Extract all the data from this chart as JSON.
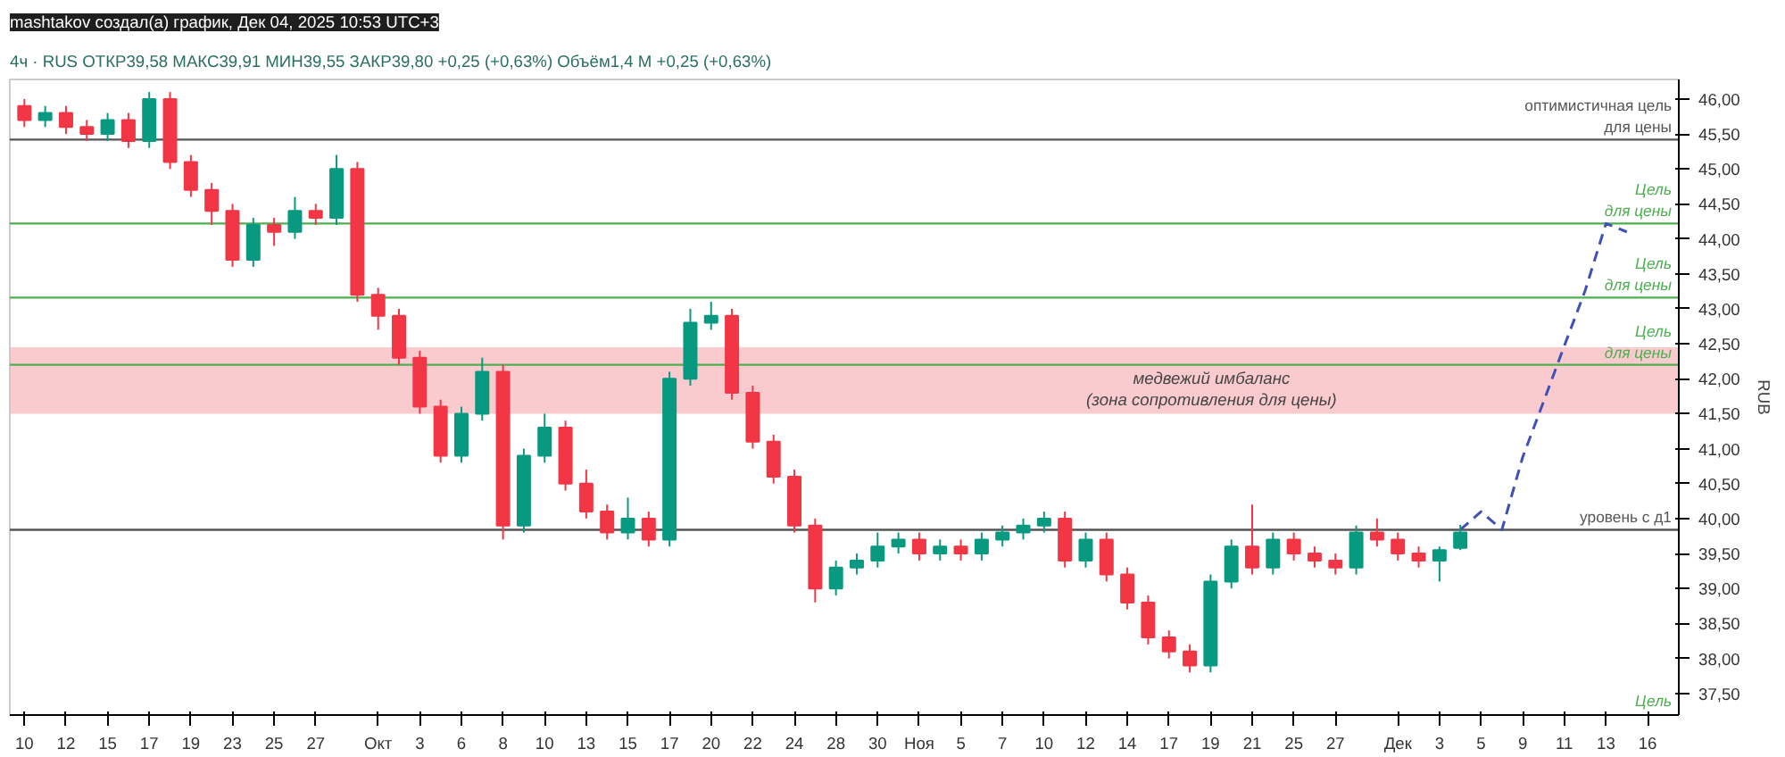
{
  "chart_data": {
    "type": "candlestick",
    "title": "mashtakov создал(а) график, Дек 04, 2025 10:53 UTC+3",
    "subtitle": "4ч · RUS   ОТКР39,58  МАКС39,91  МИН39,55  ЗАКР39,80  +0,25 (+0,63%)   Объём1,4 M  +0,25 (+0,63%)",
    "ylabel": "RUB",
    "categories": [
      "10",
      null,
      "12",
      null,
      "15",
      null,
      "17",
      null,
      "19",
      null,
      "23",
      null,
      "25",
      null,
      "27",
      null,
      null,
      "Окт",
      null,
      "3",
      null,
      "6",
      null,
      "8",
      null,
      "10",
      null,
      "13",
      null,
      "15",
      null,
      "17",
      null,
      "20",
      null,
      "22",
      null,
      "24",
      null,
      "28",
      null,
      "30",
      null,
      "Ноя",
      null,
      "5",
      null,
      "7",
      null,
      "10",
      null,
      "12",
      null,
      "14",
      null,
      "17",
      null,
      "19",
      null,
      "21",
      null,
      "25",
      null,
      "27",
      null,
      null,
      "Дек",
      null,
      "3",
      null,
      "5",
      null,
      "9",
      null,
      "11",
      null,
      "13",
      null,
      "16",
      null
    ],
    "ohlc": [
      [
        45.9,
        46.0,
        45.6,
        45.7
      ],
      [
        45.7,
        45.9,
        45.6,
        45.8
      ],
      [
        45.8,
        45.9,
        45.5,
        45.6
      ],
      [
        45.6,
        45.7,
        45.4,
        45.5
      ],
      [
        45.5,
        45.8,
        45.4,
        45.7
      ],
      [
        45.7,
        45.8,
        45.3,
        45.4
      ],
      [
        45.4,
        46.1,
        45.3,
        46.0
      ],
      [
        46.0,
        46.1,
        45.0,
        45.1
      ],
      [
        45.1,
        45.2,
        44.6,
        44.7
      ],
      [
        44.7,
        44.8,
        44.2,
        44.4
      ],
      [
        44.4,
        44.5,
        43.6,
        43.7
      ],
      [
        43.7,
        44.3,
        43.6,
        44.2
      ],
      [
        44.2,
        44.3,
        43.9,
        44.1
      ],
      [
        44.1,
        44.6,
        44.0,
        44.4
      ],
      [
        44.4,
        44.5,
        44.2,
        44.3
      ],
      [
        44.3,
        45.2,
        44.2,
        45.0
      ],
      [
        45.0,
        45.1,
        43.1,
        43.2
      ],
      [
        43.2,
        43.3,
        42.7,
        42.9
      ],
      [
        42.9,
        43.0,
        42.2,
        42.3
      ],
      [
        42.3,
        42.4,
        41.5,
        41.6
      ],
      [
        41.6,
        41.7,
        40.8,
        40.9
      ],
      [
        40.9,
        41.6,
        40.8,
        41.5
      ],
      [
        41.5,
        42.3,
        41.4,
        42.1
      ],
      [
        42.1,
        42.2,
        39.7,
        39.9
      ],
      [
        39.9,
        41.0,
        39.8,
        40.9
      ],
      [
        40.9,
        41.5,
        40.8,
        41.3
      ],
      [
        41.3,
        41.4,
        40.4,
        40.5
      ],
      [
        40.5,
        40.7,
        40.0,
        40.1
      ],
      [
        40.1,
        40.2,
        39.7,
        39.8
      ],
      [
        39.8,
        40.3,
        39.7,
        40.0
      ],
      [
        40.0,
        40.1,
        39.6,
        39.7
      ],
      [
        39.7,
        42.1,
        39.6,
        42.0
      ],
      [
        42.0,
        43.0,
        41.9,
        42.8
      ],
      [
        42.8,
        43.1,
        42.7,
        42.9
      ],
      [
        42.9,
        43.0,
        41.7,
        41.8
      ],
      [
        41.8,
        41.9,
        41.0,
        41.1
      ],
      [
        41.1,
        41.2,
        40.5,
        40.6
      ],
      [
        40.6,
        40.7,
        39.8,
        39.9
      ],
      [
        39.9,
        40.0,
        38.8,
        39.0
      ],
      [
        39.0,
        39.4,
        38.9,
        39.3
      ],
      [
        39.3,
        39.5,
        39.2,
        39.4
      ],
      [
        39.4,
        39.8,
        39.3,
        39.6
      ],
      [
        39.6,
        39.8,
        39.5,
        39.7
      ],
      [
        39.7,
        39.8,
        39.4,
        39.5
      ],
      [
        39.5,
        39.7,
        39.4,
        39.6
      ],
      [
        39.6,
        39.7,
        39.4,
        39.5
      ],
      [
        39.5,
        39.8,
        39.4,
        39.7
      ],
      [
        39.7,
        39.9,
        39.6,
        39.8
      ],
      [
        39.8,
        40.0,
        39.7,
        39.9
      ],
      [
        39.9,
        40.1,
        39.8,
        40.0
      ],
      [
        40.0,
        40.1,
        39.3,
        39.4
      ],
      [
        39.4,
        39.8,
        39.3,
        39.7
      ],
      [
        39.7,
        39.8,
        39.1,
        39.2
      ],
      [
        39.2,
        39.3,
        38.7,
        38.8
      ],
      [
        38.8,
        38.9,
        38.2,
        38.3
      ],
      [
        38.3,
        38.4,
        38.0,
        38.1
      ],
      [
        38.1,
        38.2,
        37.8,
        37.9
      ],
      [
        37.9,
        39.2,
        37.8,
        39.1
      ],
      [
        39.1,
        39.7,
        39.0,
        39.6
      ],
      [
        39.6,
        40.2,
        39.2,
        39.3
      ],
      [
        39.3,
        39.8,
        39.2,
        39.7
      ],
      [
        39.7,
        39.8,
        39.4,
        39.5
      ],
      [
        39.5,
        39.6,
        39.3,
        39.4
      ],
      [
        39.4,
        39.5,
        39.2,
        39.3
      ],
      [
        39.3,
        39.9,
        39.2,
        39.8
      ],
      [
        39.8,
        40.0,
        39.6,
        39.7
      ],
      [
        39.7,
        39.8,
        39.4,
        39.5
      ],
      [
        39.5,
        39.6,
        39.3,
        39.4
      ],
      [
        39.4,
        39.6,
        39.1,
        39.55
      ],
      [
        39.58,
        39.91,
        39.55,
        39.8
      ],
      null,
      null,
      null,
      null,
      null,
      null,
      null,
      null,
      null,
      null
    ],
    "colors": [
      "#f23645",
      "#089981",
      "#f23645",
      "#f23645",
      "#089981",
      "#f23645",
      "#089981",
      "#f23645",
      "#f23645",
      "#f23645",
      "#f23645",
      "#089981",
      "#f23645",
      "#089981",
      "#f23645",
      "#089981",
      "#f23645",
      "#f23645",
      "#f23645",
      "#f23645",
      "#f23645",
      "#089981",
      "#089981",
      "#f23645",
      "#089981",
      "#089981",
      "#f23645",
      "#f23645",
      "#f23645",
      "#089981",
      "#f23645",
      "#089981",
      "#089981",
      "#089981",
      "#f23645",
      "#f23645",
      "#f23645",
      "#f23645",
      "#f23645",
      "#089981",
      "#089981",
      "#089981",
      "#089981",
      "#f23645",
      "#089981",
      "#f23645",
      "#089981",
      "#089981",
      "#089981",
      "#089981",
      "#f23645",
      "#089981",
      "#f23645",
      "#f23645",
      "#f23645",
      "#f23645",
      "#f23645",
      "#089981",
      "#089981",
      "#f23645",
      "#089981",
      "#f23645",
      "#f23645",
      "#f23645",
      "#089981",
      "#f23645",
      "#f23645",
      "#f23645",
      "#089981",
      "#089981",
      null,
      null,
      null,
      null,
      null,
      null,
      null,
      null,
      null,
      null
    ],
    "series": [
      {
        "type": "line",
        "line_style": "dashed",
        "color": "#3f51b5",
        "values": [
          null,
          null,
          null,
          null,
          null,
          null,
          null,
          null,
          null,
          null,
          null,
          null,
          null,
          null,
          null,
          null,
          null,
          null,
          null,
          null,
          null,
          null,
          null,
          null,
          null,
          null,
          null,
          null,
          null,
          null,
          null,
          null,
          null,
          null,
          null,
          null,
          null,
          null,
          null,
          null,
          null,
          null,
          null,
          null,
          null,
          null,
          null,
          null,
          null,
          null,
          null,
          null,
          null,
          null,
          null,
          null,
          null,
          null,
          null,
          null,
          null,
          null,
          null,
          null,
          null,
          null,
          null,
          null,
          null,
          39.84,
          40.1,
          39.84,
          40.88,
          41.67,
          42.47,
          43.26,
          44.22,
          44.1,
          null,
          null
        ]
      }
    ],
    "ylim": [
      37.19,
      46.28
    ],
    "yticks": [
      {
        "value": 37.5,
        "label": "37,50"
      },
      {
        "value": 38,
        "label": "38,00"
      },
      {
        "value": 38.5,
        "label": "38,50"
      },
      {
        "value": 39,
        "label": "39,00"
      },
      {
        "value": 39.5,
        "label": "39,50"
      },
      {
        "value": 40,
        "label": "40,00"
      },
      {
        "value": 40.5,
        "label": "40,50"
      },
      {
        "value": 41,
        "label": "41,00"
      },
      {
        "value": 41.5,
        "label": "41,50"
      },
      {
        "value": 42,
        "label": "42,00"
      },
      {
        "value": 42.5,
        "label": "42,50"
      },
      {
        "value": 43,
        "label": "43,00"
      },
      {
        "value": 43.5,
        "label": "43,50"
      },
      {
        "value": 44,
        "label": "44,00"
      },
      {
        "value": 44.5,
        "label": "44,50"
      },
      {
        "value": 45,
        "label": "45,00"
      },
      {
        "value": 45.5,
        "label": "45,50"
      },
      {
        "value": 46,
        "label": "46,00"
      }
    ],
    "ref_lines": [
      {
        "axis": "y",
        "value": 45.42,
        "label": "оптимистичная цель\nдля цены",
        "color": "#555555"
      },
      {
        "axis": "y",
        "value": 44.22,
        "label": "Цель\nдля цены",
        "color": "#4caf50"
      },
      {
        "axis": "y",
        "value": 43.16,
        "label": "Цель\nдля цены",
        "color": "#4caf50"
      },
      {
        "axis": "y",
        "value": 42.2,
        "label": "Цель\nдля цены",
        "color": "#4caf50"
      },
      {
        "axis": "y",
        "value": 39.84,
        "label": "уровень с д1",
        "color": "#555555"
      }
    ],
    "bands": [
      {
        "axis": "y",
        "from": 41.5,
        "to": 42.45,
        "color": "#f7a8ad",
        "label": "медвежий имбаланс\n(зона сопротивления для цены)"
      }
    ],
    "annotations": [
      "Цель"
    ]
  }
}
